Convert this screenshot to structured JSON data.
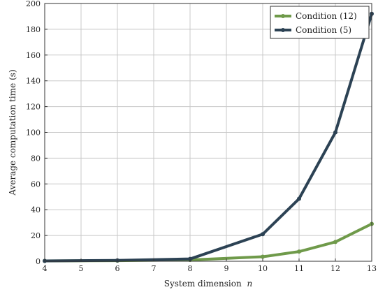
{
  "chart_data": {
    "type": "line",
    "title": "",
    "xlabel": "System dimension",
    "xlabel_var": "n",
    "ylabel": "Average computation time (s)",
    "xlim": [
      4,
      13
    ],
    "ylim": [
      0,
      200
    ],
    "xticks": [
      4,
      5,
      6,
      7,
      8,
      9,
      10,
      11,
      12,
      13
    ],
    "yticks": [
      0,
      20,
      40,
      60,
      80,
      100,
      120,
      140,
      160,
      180,
      200
    ],
    "grid": true,
    "legend_position": "top-right",
    "series": [
      {
        "name": "Condition (12)",
        "color": "#6f9a4a",
        "x": [
          4,
          6,
          8,
          10,
          11,
          12,
          13
        ],
        "y": [
          0.3,
          0.5,
          1.0,
          3.5,
          7.5,
          15.0,
          29.0
        ]
      },
      {
        "name": "Condition (5)",
        "color": "#2c4254",
        "x": [
          4,
          6,
          8,
          10,
          11,
          12,
          13
        ],
        "y": [
          0.3,
          0.7,
          1.8,
          21.0,
          48.5,
          100.0,
          192.0
        ]
      }
    ]
  }
}
